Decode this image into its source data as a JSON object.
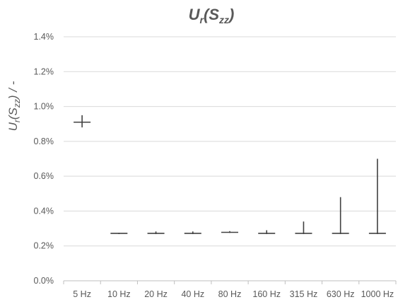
{
  "chart_data": {
    "type": "scatter",
    "title": {
      "main": "U",
      "sub1": "r",
      "paren_open": "(S",
      "sub2": "zz",
      "paren_close": ")"
    },
    "ylabel": {
      "main": "U",
      "sub1": "r",
      "paren_open": "(S",
      "sub2": "zz",
      "paren_close": ") / -"
    },
    "xlabel": "",
    "categories": [
      "5 Hz",
      "10 Hz",
      "20 Hz",
      "40 Hz",
      "80 Hz",
      "160 Hz",
      "315 Hz",
      "630 Hz",
      "1000 Hz"
    ],
    "yticks": [
      "0.0%",
      "0.2%",
      "0.4%",
      "0.6%",
      "0.8%",
      "1.0%",
      "1.2%",
      "1.4%"
    ],
    "ylim": [
      0,
      1.4
    ],
    "y_unit": "%",
    "series": [
      {
        "values": [
          0.91,
          0.272,
          0.272,
          0.272,
          0.278,
          0.272,
          0.272,
          0.272,
          0.272
        ],
        "error_high": [
          0.95,
          0.275,
          0.283,
          0.283,
          0.285,
          0.29,
          0.34,
          0.48,
          0.7
        ],
        "error_low": [
          0.88,
          0.268,
          0.268,
          0.268,
          0.275,
          0.268,
          0.268,
          0.268,
          0.268
        ]
      }
    ],
    "grid": true,
    "legend": "none",
    "color": "#404040"
  }
}
